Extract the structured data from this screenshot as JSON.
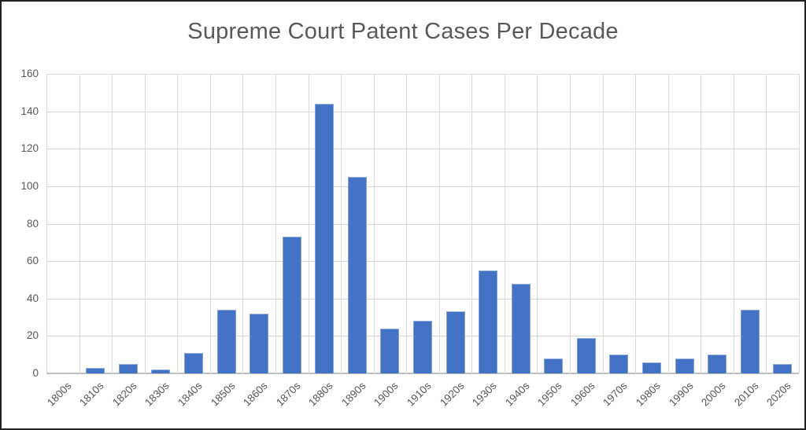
{
  "chart_data": {
    "type": "bar",
    "title": "Supreme Court Patent Cases Per Decade",
    "categories": [
      "1800s",
      "1810s",
      "1820s",
      "1830s",
      "1840s",
      "1850s",
      "1860s",
      "1870s",
      "1880s",
      "1890s",
      "1900s",
      "1910s",
      "1920s",
      "1930s",
      "1940s",
      "1950s",
      "1960s",
      "1970s",
      "1980s",
      "1990s",
      "2000s",
      "2010s",
      "2020s"
    ],
    "values": [
      0,
      3,
      5,
      2,
      11,
      34,
      32,
      73,
      144,
      105,
      24,
      28,
      33,
      55,
      48,
      8,
      19,
      10,
      6,
      8,
      10,
      34,
      5
    ],
    "xlabel": "",
    "ylabel": "",
    "ylim": [
      0,
      160
    ],
    "y_ticks": [
      0,
      20,
      40,
      60,
      80,
      100,
      120,
      140,
      160
    ],
    "grid": "horizontal-and-vertical",
    "legend": "none",
    "colors": {
      "bar_fill": "#4472C4",
      "gridline": "#D9D9D9",
      "axis_line": "#BFBFBF",
      "tick_label": "#595959",
      "title": "#595959",
      "background": "#FFFFFF",
      "frame_border": "#1F1F1F"
    }
  }
}
